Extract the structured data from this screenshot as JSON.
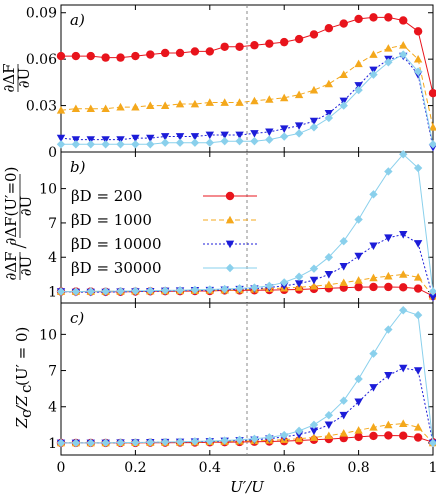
{
  "chart_data": [
    {
      "type": "line",
      "panel_label": "a)",
      "ylabel": "∂ΔF/∂U",
      "xlabel": "",
      "xlim": [
        0,
        1
      ],
      "ylim": [
        0,
        0.095
      ],
      "yticks": [
        0,
        0.03,
        0.06,
        0.09
      ],
      "ytick_labels": [
        "0",
        "0.03",
        "0.06",
        "0.09"
      ],
      "vline_x": 0.5,
      "series": [
        {
          "name": "βD = 200",
          "color": "#e8141c",
          "marker": "circle",
          "dash": "",
          "x": [
            0,
            0.04,
            0.08,
            0.12,
            0.16,
            0.2,
            0.24,
            0.28,
            0.32,
            0.36,
            0.4,
            0.44,
            0.48,
            0.52,
            0.56,
            0.6,
            0.64,
            0.68,
            0.72,
            0.76,
            0.8,
            0.84,
            0.88,
            0.92,
            0.96,
            1
          ],
          "y": [
            0.062,
            0.062,
            0.062,
            0.061,
            0.061,
            0.062,
            0.063,
            0.064,
            0.064,
            0.065,
            0.065,
            0.068,
            0.068,
            0.069,
            0.07,
            0.071,
            0.073,
            0.076,
            0.08,
            0.083,
            0.086,
            0.087,
            0.087,
            0.085,
            0.078,
            0.038
          ]
        },
        {
          "name": "βD = 1000",
          "color": "#f4a81c",
          "marker": "triangle-up",
          "dash": "5,3",
          "x": [
            0,
            0.04,
            0.08,
            0.12,
            0.16,
            0.2,
            0.24,
            0.28,
            0.32,
            0.36,
            0.4,
            0.44,
            0.48,
            0.52,
            0.56,
            0.6,
            0.64,
            0.68,
            0.72,
            0.76,
            0.8,
            0.84,
            0.88,
            0.92,
            0.96,
            1
          ],
          "y": [
            0.027,
            0.028,
            0.028,
            0.028,
            0.029,
            0.029,
            0.03,
            0.03,
            0.031,
            0.031,
            0.032,
            0.032,
            0.032,
            0.033,
            0.034,
            0.035,
            0.037,
            0.04,
            0.044,
            0.05,
            0.057,
            0.063,
            0.067,
            0.069,
            0.06,
            0.016
          ]
        },
        {
          "name": "βD = 10000",
          "color": "#1c1cd8",
          "marker": "triangle-down",
          "dash": "2,2",
          "x": [
            0,
            0.04,
            0.08,
            0.12,
            0.16,
            0.2,
            0.24,
            0.28,
            0.32,
            0.36,
            0.4,
            0.44,
            0.48,
            0.52,
            0.56,
            0.6,
            0.64,
            0.68,
            0.72,
            0.76,
            0.8,
            0.84,
            0.88,
            0.92,
            0.96,
            1
          ],
          "y": [
            0.009,
            0.008,
            0.008,
            0.008,
            0.008,
            0.009,
            0.009,
            0.01,
            0.01,
            0.01,
            0.011,
            0.011,
            0.011,
            0.012,
            0.013,
            0.015,
            0.017,
            0.02,
            0.025,
            0.033,
            0.043,
            0.053,
            0.06,
            0.062,
            0.05,
            0.003
          ]
        },
        {
          "name": "βD = 30000",
          "color": "#8ad0ec",
          "marker": "diamond",
          "dash": "",
          "x": [
            0,
            0.04,
            0.08,
            0.12,
            0.16,
            0.2,
            0.24,
            0.28,
            0.32,
            0.36,
            0.4,
            0.44,
            0.48,
            0.52,
            0.56,
            0.6,
            0.64,
            0.68,
            0.72,
            0.76,
            0.8,
            0.84,
            0.88,
            0.92,
            0.96,
            1
          ],
          "y": [
            0.005,
            0.005,
            0.005,
            0.005,
            0.005,
            0.005,
            0.005,
            0.006,
            0.006,
            0.006,
            0.006,
            0.007,
            0.007,
            0.007,
            0.008,
            0.01,
            0.012,
            0.016,
            0.022,
            0.03,
            0.04,
            0.05,
            0.058,
            0.063,
            0.052,
            0.005
          ]
        }
      ]
    },
    {
      "type": "line",
      "panel_label": "b)",
      "ylabel": "∂ΔF/∂U / ∂ΔF(U′=0)/∂U",
      "xlabel": "",
      "xlim": [
        0,
        1
      ],
      "ylim": [
        0,
        13.2
      ],
      "yticks": [
        1,
        4,
        7,
        10
      ],
      "ytick_labels": [
        "1",
        "4",
        "7",
        "10"
      ],
      "vline_x": 0.5,
      "legend_position": "top-left",
      "series": [
        {
          "name": "βD = 200",
          "color": "#e8141c",
          "marker": "circle",
          "dash": "",
          "x": [
            0,
            0.04,
            0.08,
            0.12,
            0.16,
            0.2,
            0.24,
            0.28,
            0.32,
            0.36,
            0.4,
            0.44,
            0.48,
            0.52,
            0.56,
            0.6,
            0.64,
            0.68,
            0.72,
            0.76,
            0.8,
            0.84,
            0.88,
            0.92,
            0.96,
            1
          ],
          "y": [
            1,
            1,
            1,
            0.98,
            0.98,
            1,
            1.02,
            1.03,
            1.03,
            1.05,
            1.05,
            1.1,
            1.1,
            1.11,
            1.13,
            1.15,
            1.18,
            1.23,
            1.29,
            1.34,
            1.39,
            1.4,
            1.4,
            1.37,
            1.26,
            0.6
          ]
        },
        {
          "name": "βD = 1000",
          "color": "#f4a81c",
          "marker": "triangle-up",
          "dash": "5,3",
          "x": [
            0,
            0.04,
            0.08,
            0.12,
            0.16,
            0.2,
            0.24,
            0.28,
            0.32,
            0.36,
            0.4,
            0.44,
            0.48,
            0.52,
            0.56,
            0.6,
            0.64,
            0.68,
            0.72,
            0.76,
            0.8,
            0.84,
            0.88,
            0.92,
            0.96,
            1
          ],
          "y": [
            1,
            1,
            1,
            1.02,
            1.02,
            1.04,
            1.05,
            1.06,
            1.07,
            1.08,
            1.1,
            1.12,
            1.15,
            1.2,
            1.25,
            1.3,
            1.37,
            1.47,
            1.6,
            1.78,
            1.98,
            2.2,
            2.35,
            2.5,
            2.25,
            0.6
          ]
        },
        {
          "name": "βD = 10000",
          "color": "#1c1cd8",
          "marker": "triangle-down",
          "dash": "2,2",
          "x": [
            0,
            0.04,
            0.08,
            0.12,
            0.16,
            0.2,
            0.24,
            0.28,
            0.32,
            0.36,
            0.4,
            0.44,
            0.48,
            0.52,
            0.56,
            0.6,
            0.64,
            0.68,
            0.72,
            0.76,
            0.8,
            0.84,
            0.88,
            0.92,
            0.96,
            1
          ],
          "y": [
            1,
            0.95,
            0.95,
            0.95,
            0.98,
            1,
            1.02,
            1.05,
            1.07,
            1.1,
            1.12,
            1.15,
            1.2,
            1.25,
            1.35,
            1.5,
            1.7,
            2,
            2.5,
            3.2,
            4.1,
            5,
            5.7,
            6,
            5.2,
            0.5
          ]
        },
        {
          "name": "βD = 30000",
          "color": "#8ad0ec",
          "marker": "diamond",
          "dash": "",
          "x": [
            0,
            0.04,
            0.08,
            0.12,
            0.16,
            0.2,
            0.24,
            0.28,
            0.32,
            0.36,
            0.4,
            0.44,
            0.48,
            0.52,
            0.56,
            0.6,
            0.64,
            0.68,
            0.72,
            0.76,
            0.8,
            0.84,
            0.88,
            0.92,
            0.96,
            1
          ],
          "y": [
            1,
            1,
            1.02,
            1.02,
            1.04,
            1.06,
            1.08,
            1.1,
            1.12,
            1.15,
            1.18,
            1.22,
            1.28,
            1.35,
            1.5,
            1.8,
            2.3,
            3,
            4,
            5.4,
            7.3,
            9.5,
            11.5,
            13,
            11.8,
            1
          ]
        }
      ]
    },
    {
      "type": "line",
      "panel_label": "c)",
      "ylabel": "Zc/Zc(U′=0)",
      "xlabel": "U′/U",
      "xlim": [
        0,
        1
      ],
      "ylim": [
        0,
        12.6
      ],
      "yticks": [
        1,
        4,
        7,
        10
      ],
      "ytick_labels": [
        "1",
        "4",
        "7",
        "10"
      ],
      "xticks": [
        0,
        0.2,
        0.4,
        0.6,
        0.8,
        1
      ],
      "xtick_labels": [
        "0",
        "0.2",
        "0.4",
        "0.6",
        "0.8",
        "1"
      ],
      "vline_x": 0.5,
      "series": [
        {
          "name": "βD = 200",
          "color": "#e8141c",
          "marker": "circle",
          "dash": "",
          "x": [
            0,
            0.04,
            0.08,
            0.12,
            0.16,
            0.2,
            0.24,
            0.28,
            0.32,
            0.36,
            0.4,
            0.44,
            0.48,
            0.52,
            0.56,
            0.6,
            0.64,
            0.68,
            0.72,
            0.76,
            0.8,
            0.84,
            0.88,
            0.92,
            0.96,
            1
          ],
          "y": [
            1,
            1,
            1,
            1,
            1,
            1,
            1.02,
            1.02,
            1.03,
            1.03,
            1.05,
            1.06,
            1.08,
            1.1,
            1.12,
            1.15,
            1.2,
            1.26,
            1.32,
            1.4,
            1.5,
            1.58,
            1.62,
            1.6,
            1.45,
            1.05
          ]
        },
        {
          "name": "βD = 1000",
          "color": "#f4a81c",
          "marker": "triangle-up",
          "dash": "5,3",
          "x": [
            0,
            0.04,
            0.08,
            0.12,
            0.16,
            0.2,
            0.24,
            0.28,
            0.32,
            0.36,
            0.4,
            0.44,
            0.48,
            0.52,
            0.56,
            0.6,
            0.64,
            0.68,
            0.72,
            0.76,
            0.8,
            0.84,
            0.88,
            0.92,
            0.96,
            1
          ],
          "y": [
            1,
            1,
            1,
            1,
            1.02,
            1.02,
            1.04,
            1.05,
            1.06,
            1.08,
            1.1,
            1.12,
            1.15,
            1.18,
            1.22,
            1.28,
            1.35,
            1.45,
            1.6,
            1.8,
            2.05,
            2.3,
            2.5,
            2.6,
            2.3,
            1
          ]
        },
        {
          "name": "βD = 10000",
          "color": "#1c1cd8",
          "marker": "triangle-down",
          "dash": "2,2",
          "x": [
            0,
            0.04,
            0.08,
            0.12,
            0.16,
            0.2,
            0.24,
            0.28,
            0.32,
            0.36,
            0.4,
            0.44,
            0.48,
            0.52,
            0.56,
            0.6,
            0.64,
            0.68,
            0.72,
            0.76,
            0.8,
            0.84,
            0.88,
            0.92,
            0.96,
            1
          ],
          "y": [
            1,
            1,
            1,
            1,
            1.02,
            1.03,
            1.05,
            1.06,
            1.08,
            1.1,
            1.12,
            1.16,
            1.2,
            1.26,
            1.35,
            1.5,
            1.7,
            2,
            2.5,
            3.3,
            4.4,
            5.6,
            6.6,
            7.2,
            7,
            1
          ]
        },
        {
          "name": "βD = 30000",
          "color": "#8ad0ec",
          "marker": "diamond",
          "dash": "",
          "x": [
            0,
            0.04,
            0.08,
            0.12,
            0.16,
            0.2,
            0.24,
            0.28,
            0.32,
            0.36,
            0.4,
            0.44,
            0.48,
            0.52,
            0.56,
            0.6,
            0.64,
            0.68,
            0.72,
            0.76,
            0.8,
            0.84,
            0.88,
            0.92,
            0.96,
            1
          ],
          "y": [
            1,
            1,
            1,
            1.02,
            1.03,
            1.04,
            1.06,
            1.08,
            1.1,
            1.13,
            1.16,
            1.2,
            1.26,
            1.34,
            1.46,
            1.65,
            2,
            2.5,
            3.3,
            4.5,
            6.3,
            8.4,
            10.4,
            12,
            11.6,
            1
          ]
        }
      ]
    }
  ]
}
